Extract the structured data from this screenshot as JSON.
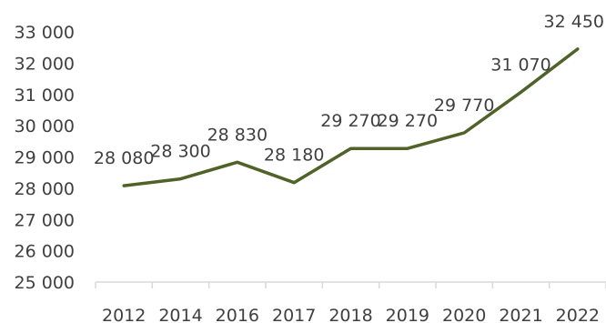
{
  "chart_data": {
    "type": "line",
    "title": "",
    "xlabel": "",
    "ylabel": "",
    "categories": [
      "2012",
      "2014",
      "2016",
      "2017",
      "2018",
      "2019",
      "2020",
      "2021",
      "2022"
    ],
    "series": [
      {
        "values": [
          28080,
          28300,
          28830,
          28180,
          29270,
          29270,
          29770,
          31070,
          32450
        ],
        "labels": [
          "28 080",
          "28 300",
          "28 830",
          "28 180",
          "29 270",
          "29 270",
          "29 770",
          "31 070",
          "32 450"
        ],
        "color": "#4f6228"
      }
    ],
    "ylim": [
      25000,
      33000
    ],
    "yticks": [
      25000,
      26000,
      27000,
      28000,
      29000,
      30000,
      31000,
      32000,
      33000
    ],
    "ytick_labels": [
      "25 000",
      "26 000",
      "27 000",
      "28 000",
      "29 000",
      "30 000",
      "31 000",
      "32 000",
      "33 000"
    ],
    "grid": false,
    "legend": "none"
  }
}
